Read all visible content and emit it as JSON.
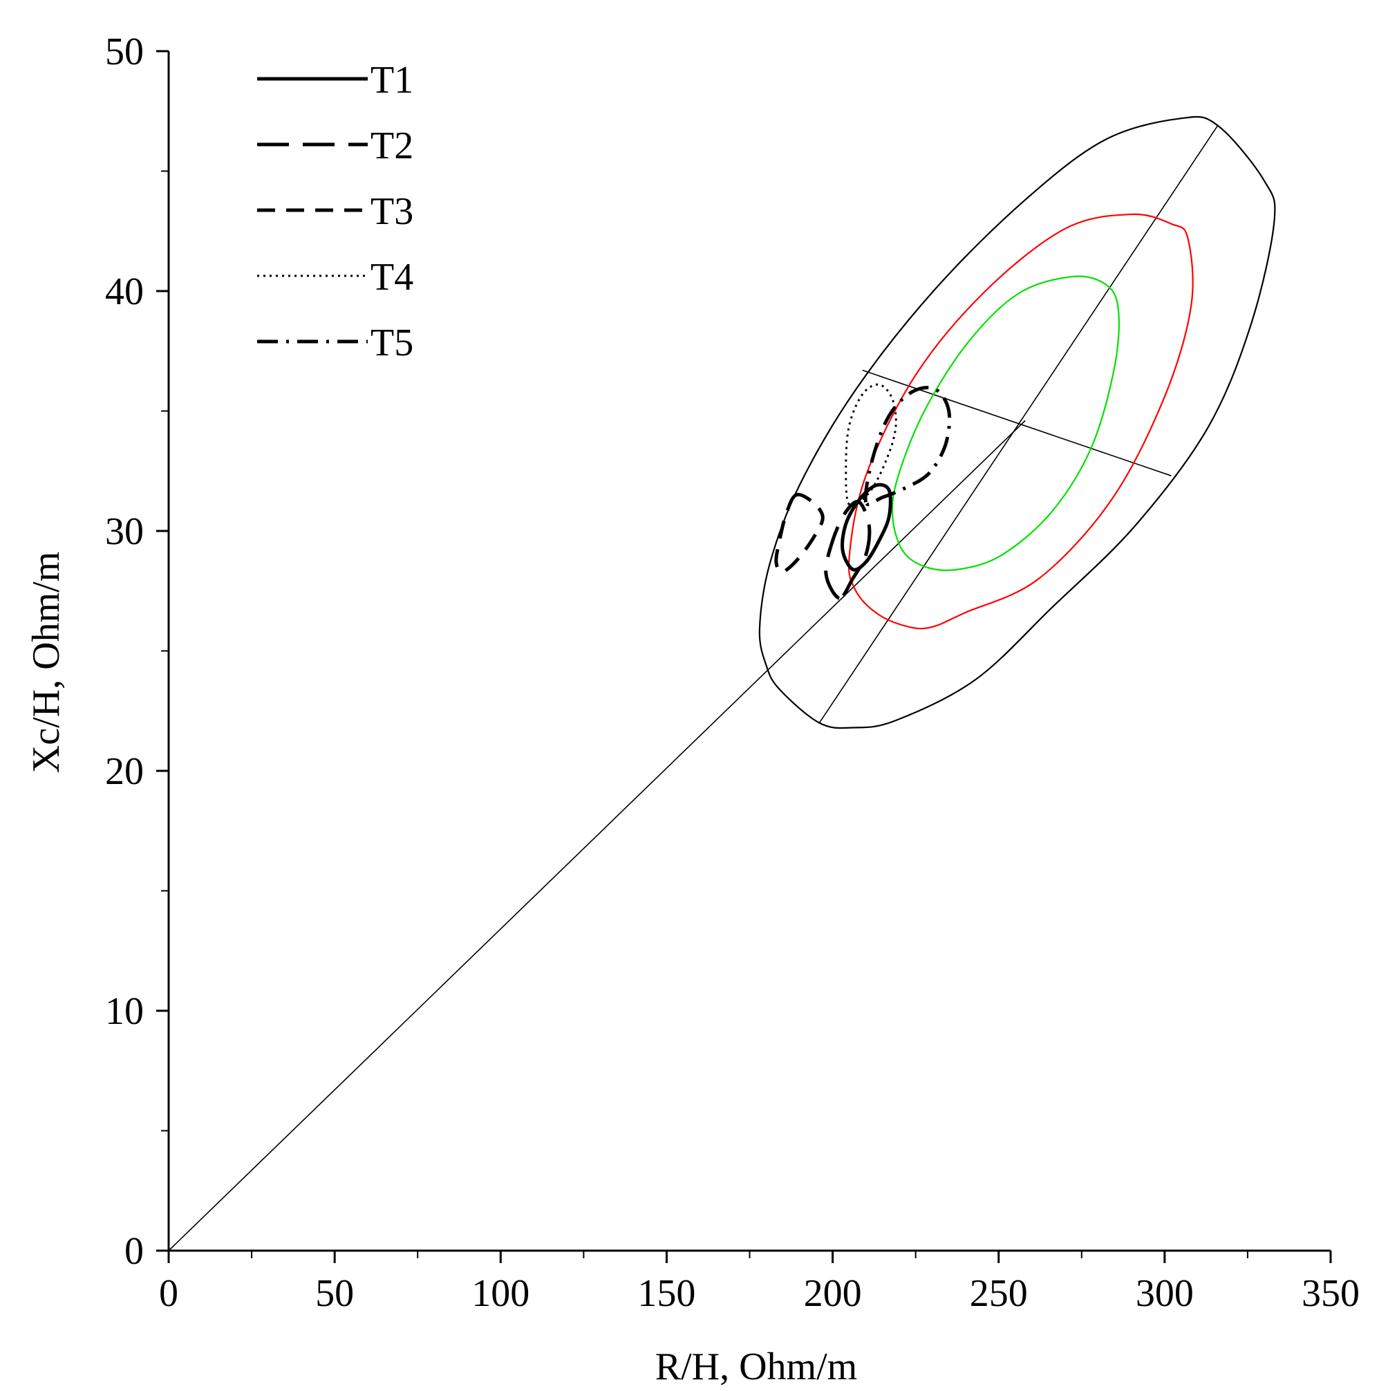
{
  "chart_data": {
    "type": "line",
    "title": "",
    "xlabel": "R/H, Ohm/m",
    "ylabel": "Xc/H, Ohm/m",
    "xlim": [
      0,
      350
    ],
    "ylim": [
      0,
      50
    ],
    "x_ticks": [
      0,
      50,
      100,
      150,
      200,
      250,
      300,
      350
    ],
    "y_ticks": [
      0,
      10,
      20,
      30,
      40,
      50
    ],
    "grid": false,
    "legend_position": "top-left",
    "legend": [
      {
        "name": "T1",
        "style": "solid"
      },
      {
        "name": "T2",
        "style": "long-dash"
      },
      {
        "name": "T3",
        "style": "dash"
      },
      {
        "name": "T4",
        "style": "dotted"
      },
      {
        "name": "T5",
        "style": "dash-dot"
      }
    ],
    "reference_lines": [
      {
        "name": "diagonal",
        "points": [
          [
            0,
            0
          ],
          [
            258,
            34.6
          ]
        ]
      },
      {
        "name": "major-axis",
        "points": [
          [
            196,
            22.0
          ],
          [
            316,
            46.9
          ]
        ]
      },
      {
        "name": "minor-axis",
        "points": [
          [
            209,
            36.7
          ],
          [
            302,
            32.3
          ]
        ]
      }
    ],
    "ellipses": [
      {
        "name": "outer",
        "color": "#000000",
        "points": [
          [
            180,
            24.4
          ],
          [
            178,
            25.9
          ],
          [
            181,
            28.6
          ],
          [
            190,
            31.9
          ],
          [
            207,
            35.9
          ],
          [
            231,
            40.1
          ],
          [
            258,
            43.8
          ],
          [
            282,
            46.3
          ],
          [
            305,
            47.2
          ],
          [
            316,
            46.9
          ],
          [
            330,
            44.6
          ],
          [
            333,
            42.9
          ],
          [
            326,
            38.6
          ],
          [
            313,
            34.3
          ],
          [
            291,
            30.2
          ],
          [
            266,
            26.8
          ],
          [
            243,
            23.8
          ],
          [
            219,
            22.1
          ],
          [
            206,
            21.8
          ],
          [
            196,
            22.0
          ],
          [
            184,
            23.4
          ],
          [
            180,
            24.4
          ]
        ]
      },
      {
        "name": "red",
        "color": "#ff0000",
        "points": [
          [
            205,
            28.9
          ],
          [
            210,
            32.3
          ],
          [
            225,
            36.5
          ],
          [
            246,
            40.0
          ],
          [
            270,
            42.6
          ],
          [
            290,
            43.2
          ],
          [
            302,
            42.8
          ],
          [
            307,
            42.2
          ],
          [
            308,
            39.4
          ],
          [
            300,
            35.6
          ],
          [
            284,
            31.3
          ],
          [
            262,
            28.0
          ],
          [
            240,
            26.6
          ],
          [
            230,
            26.0
          ],
          [
            223,
            26.0
          ],
          [
            214,
            26.5
          ],
          [
            207,
            27.5
          ],
          [
            205,
            28.9
          ]
        ]
      },
      {
        "name": "green",
        "color": "#00e000",
        "points": [
          [
            218,
            30.7
          ],
          [
            220,
            32.4
          ],
          [
            228,
            35.1
          ],
          [
            241,
            37.9
          ],
          [
            256,
            39.9
          ],
          [
            272,
            40.6
          ],
          [
            282,
            40.3
          ],
          [
            286,
            39.3
          ],
          [
            285,
            36.9
          ],
          [
            278,
            33.5
          ],
          [
            266,
            30.8
          ],
          [
            251,
            29.0
          ],
          [
            238,
            28.4
          ],
          [
            228,
            28.5
          ],
          [
            221,
            29.2
          ],
          [
            218,
            30.7
          ]
        ]
      }
    ],
    "series": [
      {
        "name": "T1",
        "style": "solid",
        "points": [
          [
            206,
            28.4
          ],
          [
            203,
            29.2
          ],
          [
            204,
            30.3
          ],
          [
            208,
            31.3
          ],
          [
            213,
            31.9
          ],
          [
            217,
            31.7
          ],
          [
            217,
            30.6
          ],
          [
            214,
            29.6
          ],
          [
            210,
            28.7
          ],
          [
            206,
            28.4
          ]
        ]
      },
      {
        "name": "T2",
        "style": "long-dash",
        "points": [
          [
            202,
            27.2
          ],
          [
            198,
            28.2
          ],
          [
            200,
            29.6
          ],
          [
            204,
            30.8
          ],
          [
            208,
            31.2
          ],
          [
            211,
            30.2
          ],
          [
            210,
            29.0
          ],
          [
            206,
            28.0
          ],
          [
            202,
            27.2
          ]
        ]
      },
      {
        "name": "T3",
        "style": "dash",
        "points": [
          [
            189,
            31.5
          ],
          [
            186,
            30.7
          ],
          [
            184,
            29.6
          ],
          [
            183,
            28.7
          ],
          [
            185,
            28.3
          ],
          [
            190,
            28.9
          ],
          [
            195,
            29.9
          ],
          [
            197,
            30.6
          ],
          [
            194,
            31.2
          ],
          [
            189,
            31.5
          ]
        ]
      },
      {
        "name": "T4",
        "style": "dotted",
        "points": [
          [
            205,
            31.1
          ],
          [
            204,
            32.7
          ],
          [
            205,
            34.4
          ],
          [
            209,
            35.7
          ],
          [
            214,
            36.1
          ],
          [
            218,
            35.5
          ],
          [
            219,
            34.3
          ],
          [
            216,
            32.9
          ],
          [
            211,
            31.6
          ],
          [
            205,
            31.1
          ]
        ]
      },
      {
        "name": "T5",
        "style": "dash-dot",
        "points": [
          [
            210,
            31.2
          ],
          [
            212,
            33.0
          ],
          [
            217,
            34.8
          ],
          [
            224,
            35.8
          ],
          [
            231,
            35.9
          ],
          [
            235,
            35.0
          ],
          [
            234,
            33.6
          ],
          [
            229,
            32.4
          ],
          [
            222,
            31.8
          ],
          [
            215,
            31.4
          ],
          [
            210,
            31.2
          ]
        ]
      }
    ]
  }
}
